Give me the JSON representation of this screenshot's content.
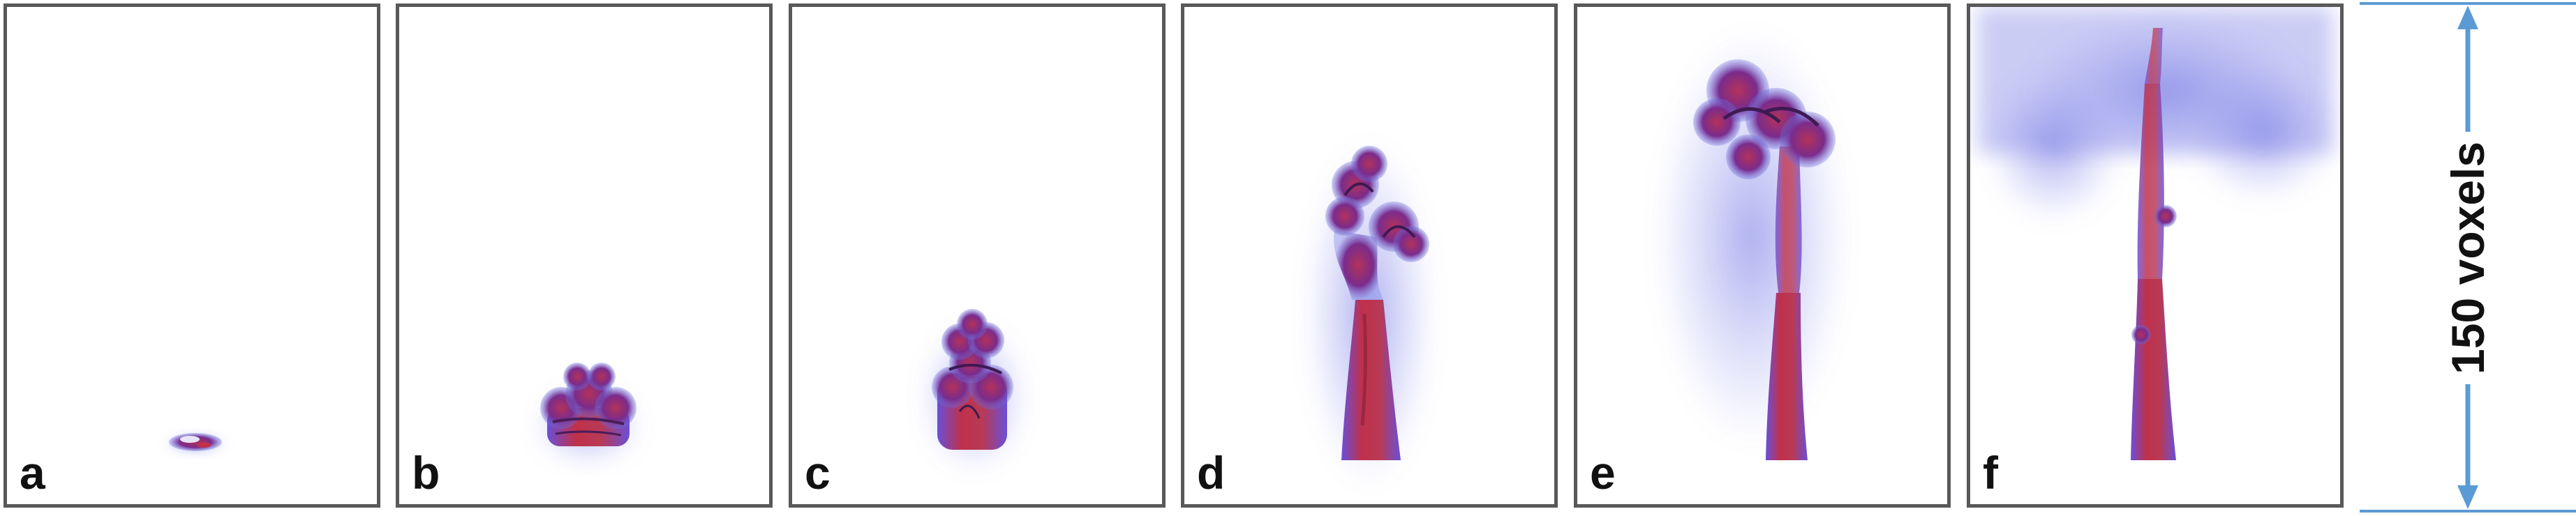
{
  "panels": [
    {
      "label": "a",
      "plume": "seed"
    },
    {
      "label": "b",
      "plume": "small-mushroom"
    },
    {
      "label": "c",
      "plume": "growing-mushroom"
    },
    {
      "label": "d",
      "plume": "rising-column"
    },
    {
      "label": "e",
      "plume": "tall-column"
    },
    {
      "label": "f",
      "plume": "spreading-top"
    }
  ],
  "scale_bar": {
    "label": "150 voxels",
    "color": "#5b9bd5"
  },
  "colors": {
    "hot": "#c0304a",
    "mid": "#7a2c8c",
    "cool": "#6a6ee0",
    "frame": "#595959"
  }
}
